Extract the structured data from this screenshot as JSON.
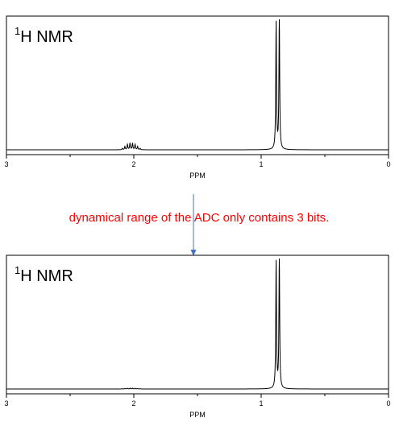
{
  "chart_data": [
    {
      "type": "line",
      "title_prefix": "1",
      "title": "H NMR",
      "xlabel": "PPM",
      "xlim": [
        3,
        0
      ],
      "x_ticks": [
        3,
        2,
        1,
        0
      ],
      "tick_labels": [
        "3",
        "2",
        "1",
        "0"
      ],
      "grid": false,
      "peaks": [
        {
          "center": 2.02,
          "heights": [
            0.01,
            0.025,
            0.04,
            0.05,
            0.05,
            0.04,
            0.025,
            0.01
          ],
          "spacing": 0.02
        },
        {
          "center": 0.87,
          "heights": [
            1.0,
            0.97
          ],
          "spacing": 0.025
        }
      ]
    },
    {
      "type": "line",
      "title_prefix": "1",
      "title": "H NMR",
      "xlabel": "PPM",
      "xlim": [
        3,
        0
      ],
      "x_ticks": [
        3,
        2,
        1,
        0
      ],
      "tick_labels": [
        "3",
        "2",
        "1",
        "0"
      ],
      "grid": false,
      "peaks": [
        {
          "center": 2.02,
          "heights": [
            0.002,
            0.004,
            0.005,
            0.006,
            0.006,
            0.005,
            0.004,
            0.002
          ],
          "spacing": 0.02
        },
        {
          "center": 0.87,
          "heights": [
            1.0,
            0.97
          ],
          "spacing": 0.025
        }
      ]
    }
  ],
  "annotation": {
    "text": "dynamical range of the ADC only contains 3 bits.",
    "color": "#ff0000",
    "arrow_color": "#4472c4"
  }
}
